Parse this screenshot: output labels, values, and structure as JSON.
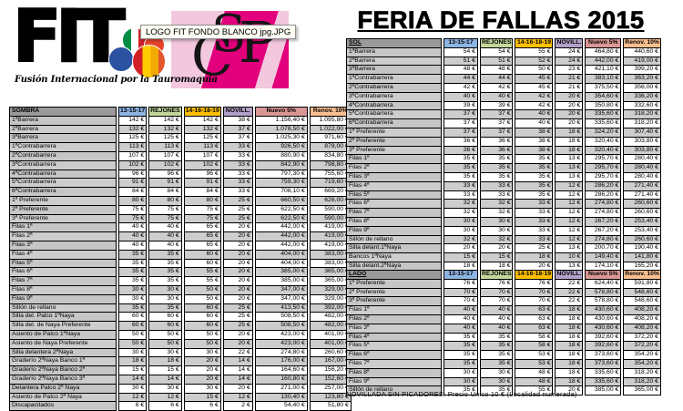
{
  "logo": {
    "wordmark": "FIT",
    "subtitle": "Fusión Internacional por la Tauromaquia",
    "tooltip": "LOGO FIT FONDO BLANCO jpg.JPG",
    "monogram_letters": {
      "s": "S",
      "c": "C",
      "p": "P"
    }
  },
  "title": "FERIA DE FALLAS 2015",
  "colors": {
    "magenta": "#e2007d",
    "pink_light": "#f3c8de",
    "header_gray": "#9a9a9a",
    "label_gray": "#c6c6c6",
    "row_alt": "#cdcdcd"
  },
  "columns": [
    "13-15-17",
    "REJONES",
    "14-16-18-19",
    "NOVILL.",
    "Nuevo 5%",
    "Renov. 10%"
  ],
  "column_colors": [
    "#8db4e2",
    "#c4d79b",
    "#ffc000",
    "#b1a0c7",
    "#d99694",
    "#fabf8f"
  ],
  "tables": {
    "sombra": {
      "label": "SOMBRA",
      "rows": [
        [
          "1ªBarrera",
          "142 €",
          "142 €",
          "142 €",
          "38 €",
          "1.156,40 €",
          "1.095,80 €"
        ],
        [
          "2ªBarrera",
          "132 €",
          "132 €",
          "132 €",
          "37 €",
          "1.078,50 €",
          "1.022,00 €"
        ],
        [
          "3ªBarrera",
          "125 €",
          "125 €",
          "125 €",
          "37 €",
          "1.025,30 €",
          "971,60 €"
        ],
        [
          "1ªContrabarrera",
          "113 €",
          "113 €",
          "113 €",
          "33 €",
          "926,50 €",
          "878,00 €"
        ],
        [
          "2ªContrabarrera",
          "107 €",
          "107 €",
          "107 €",
          "33 €",
          "880,90 €",
          "834,80 €"
        ],
        [
          "3ªContrabarrera",
          "102 €",
          "102 €",
          "102 €",
          "33 €",
          "842,90 €",
          "798,80 €"
        ],
        [
          "4ªContrabarrera",
          "96 €",
          "96 €",
          "96 €",
          "33 €",
          "797,30 €",
          "755,60 €"
        ],
        [
          "5ªContrabarrera",
          "91 €",
          "91 €",
          "91 €",
          "33 €",
          "759,30 €",
          "719,60 €"
        ],
        [
          "6ªContrabarrera",
          "84 €",
          "84 €",
          "84 €",
          "33 €",
          "706,10 €",
          "669,20 €"
        ],
        [
          "1ª Preferente",
          "80 €",
          "80 €",
          "80 €",
          "25 €",
          "660,50 €",
          "626,00 €"
        ],
        [
          "2ª Preferente",
          "75 €",
          "75 €",
          "75 €",
          "25 €",
          "622,50 €",
          "590,00 €"
        ],
        [
          "3ª Preferente",
          "75 €",
          "75 €",
          "75 €",
          "25 €",
          "622,50 €",
          "590,00 €"
        ],
        [
          "Filas 1ª",
          "40 €",
          "40 €",
          "65 €",
          "20 €",
          "442,00 €",
          "419,00 €"
        ],
        [
          "Filas 2ª",
          "40 €",
          "40 €",
          "65 €",
          "20 €",
          "442,00 €",
          "419,00 €"
        ],
        [
          "Filas 3ª",
          "40 €",
          "40 €",
          "65 €",
          "20 €",
          "442,00 €",
          "419,00 €"
        ],
        [
          "Filas 4ª",
          "35 €",
          "35 €",
          "60 €",
          "20 €",
          "404,00 €",
          "383,00 €"
        ],
        [
          "Filas 5ª",
          "35 €",
          "35 €",
          "60 €",
          "20 €",
          "404,00 €",
          "383,00 €"
        ],
        [
          "Filas 6ª",
          "35 €",
          "35 €",
          "55 €",
          "20 €",
          "385,00 €",
          "365,00 €"
        ],
        [
          "Filas 7ª",
          "35 €",
          "35 €",
          "55 €",
          "20 €",
          "385,00 €",
          "365,00 €"
        ],
        [
          "Filas 8ª",
          "30 €",
          "30 €",
          "50 €",
          "20 €",
          "347,00 €",
          "329,00 €"
        ],
        [
          "Filas 9ª",
          "30 €",
          "30 €",
          "50 €",
          "20 €",
          "347,00 €",
          "329,00 €"
        ],
        [
          "Sillón de rellano",
          "35 €",
          "35 €",
          "60 €",
          "25 €",
          "413,50 €",
          "392,00 €"
        ],
        [
          "Silla del. Palco 1ªNaya",
          "60 €",
          "60 €",
          "60 €",
          "25 €",
          "508,50 €",
          "482,00 €"
        ],
        [
          "Silla del. de Naya Preferente",
          "60 €",
          "60 €",
          "60 €",
          "25 €",
          "508,50 €",
          "482,00 €"
        ],
        [
          "Asiento de Palco 1ªNaya",
          "50 €",
          "50 €",
          "50 €",
          "20 €",
          "423,00 €",
          "401,00 €"
        ],
        [
          "Asiento de Naya Preferente",
          "50 €",
          "50 €",
          "50 €",
          "20 €",
          "423,00 €",
          "401,00 €"
        ],
        [
          "Silla delantera 2ªNaya",
          "30 €",
          "30 €",
          "30 €",
          "22 €",
          "274,80 €",
          "260,60 €"
        ],
        [
          "Graderío 2ªNaya Banco 1ª",
          "18 €",
          "18 €",
          "20 €",
          "14 €",
          "176,00 €",
          "167,00 €"
        ],
        [
          "Graderío 2ªNaya Banco 2ª",
          "15 €",
          "15 €",
          "20 €",
          "14 €",
          "164,60 €",
          "156,20 €"
        ],
        [
          "Graderío 2ªNaya Banco 3ª",
          "14 €",
          "14 €",
          "20 €",
          "14 €",
          "160,80 €",
          "152,60 €"
        ],
        [
          "Delantera Palco 2ª Naya",
          "30 €",
          "30 €",
          "30 €",
          "20 €",
          "271,00 €",
          "257,00 €"
        ],
        [
          "Asiento de Palco 2ª Naya",
          "12 €",
          "12 €",
          "15 €",
          "12 €",
          "130,40 €",
          "123,80 €"
        ],
        [
          "Discapacitados",
          "6 €",
          "6 €",
          "6 €",
          "2 €",
          "54,40 €",
          "51,80 €"
        ]
      ]
    },
    "sol": {
      "label": "SOL",
      "rows": [
        [
          "1ªBarrera",
          "54 €",
          "54 €",
          "55 €",
          "24 €",
          "464,80 €",
          "440,60 €"
        ],
        [
          "2ªBarrera",
          "51 €",
          "51 €",
          "52 €",
          "24 €",
          "442,00 €",
          "419,00 €"
        ],
        [
          "3ªBarrera",
          "48 €",
          "48 €",
          "50 €",
          "23 €",
          "421,10 €",
          "399,20 €"
        ],
        [
          "1ªContrabarrera",
          "44 €",
          "44 €",
          "45 €",
          "21 €",
          "383,10 €",
          "363,20 €"
        ],
        [
          "2ªContrabarrera",
          "42 €",
          "42 €",
          "45 €",
          "21 €",
          "375,50 €",
          "356,00 €"
        ],
        [
          "3ªContrabarrera",
          "40 €",
          "40 €",
          "42 €",
          "20 €",
          "354,60 €",
          "336,20 €"
        ],
        [
          "4ªContrabarrera",
          "39 €",
          "39 €",
          "42 €",
          "20 €",
          "350,80 €",
          "332,60 €"
        ],
        [
          "5ªContrabarrera",
          "37 €",
          "37 €",
          "40 €",
          "20 €",
          "335,60 €",
          "318,20 €"
        ],
        [
          "6ªContrabarrera",
          "37 €",
          "37 €",
          "40 €",
          "20 €",
          "335,60 €",
          "318,20 €"
        ],
        [
          "1ª Preferente",
          "37 €",
          "37 €",
          "38 €",
          "18 €",
          "324,20 €",
          "307,40 €"
        ],
        [
          "2ª Preferente",
          "36 €",
          "36 €",
          "38 €",
          "18 €",
          "320,40 €",
          "303,80 €"
        ],
        [
          "3ª Preferente",
          "36 €",
          "36 €",
          "38 €",
          "18 €",
          "320,40 €",
          "303,80 €"
        ],
        [
          "Filas 1ª",
          "35 €",
          "35 €",
          "35 €",
          "13 €",
          "295,70 €",
          "280,40 €"
        ],
        [
          "Filas 2ª",
          "35 €",
          "35 €",
          "35 €",
          "13 €",
          "295,70 €",
          "280,40 €"
        ],
        [
          "Filas 3ª",
          "35 €",
          "35 €",
          "35 €",
          "13 €",
          "295,70 €",
          "280,40 €"
        ],
        [
          "Filas 4ª",
          "33 €",
          "33 €",
          "35 €",
          "12 €",
          "286,20 €",
          "271,40 €"
        ],
        [
          "Filas 5ª",
          "33 €",
          "33 €",
          "35 €",
          "12 €",
          "286,20 €",
          "271,40 €"
        ],
        [
          "Filas 6ª",
          "32 €",
          "32 €",
          "33 €",
          "12 €",
          "274,80 €",
          "260,60 €"
        ],
        [
          "Filas 7ª",
          "32 €",
          "32 €",
          "33 €",
          "12 €",
          "274,80 €",
          "260,60 €"
        ],
        [
          "Filas 8ª",
          "30 €",
          "30 €",
          "33 €",
          "12 €",
          "267,20 €",
          "253,40 €"
        ],
        [
          "Filas 9ª",
          "30 €",
          "30 €",
          "33 €",
          "12 €",
          "267,20 €",
          "253,40 €"
        ],
        [
          "Sillón de rellano",
          "32 €",
          "32 €",
          "33 €",
          "12 €",
          "274,80 €",
          "260,60 €"
        ],
        [
          "Silla delant.1ªNaya",
          "20 €",
          "20 €",
          "25 €",
          "13 €",
          "200,70 €",
          "190,40 €"
        ],
        [
          "Bancos 1ªNaya",
          "15 €",
          "15 €",
          "18 €",
          "10 €",
          "149,40 €",
          "141,80 €"
        ],
        [
          "Silla delant.2ªNaya",
          "18 €",
          "18 €",
          "20 €",
          "13 €",
          "174,10 €",
          "165,20 €"
        ],
        [
          "Bancos 2ªNaya",
          "12 €",
          "12 €",
          "15 €",
          "8 €",
          "122,80 €",
          "116,60 €"
        ]
      ]
    },
    "lado": {
      "label": "LADO",
      "rows": [
        [
          "1ª Preferente",
          "76 €",
          "76 €",
          "76 €",
          "22 €",
          "624,40 €",
          "591,80 €"
        ],
        [
          "2ª Preferente",
          "70 €",
          "70 €",
          "70 €",
          "22 €",
          "578,80 €",
          "548,60 €"
        ],
        [
          "3ª Preferente",
          "70 €",
          "70 €",
          "70 €",
          "22 €",
          "578,80 €",
          "548,60 €"
        ],
        [
          "Filas 1ª",
          "40 €",
          "40 €",
          "63 €",
          "18 €",
          "430,60 €",
          "408,20 €"
        ],
        [
          "Filas 2ª",
          "40 €",
          "40 €",
          "63 €",
          "18 €",
          "430,60 €",
          "408,20 €"
        ],
        [
          "Filas 3ª",
          "40 €",
          "40 €",
          "63 €",
          "18 €",
          "430,60 €",
          "408,20 €"
        ],
        [
          "Filas 4ª",
          "35 €",
          "35 €",
          "58 €",
          "18 €",
          "392,60 €",
          "372,20 €"
        ],
        [
          "Filas 5ª",
          "35 €",
          "35 €",
          "58 €",
          "18 €",
          "392,60 €",
          "372,20 €"
        ],
        [
          "Filas 6ª",
          "35 €",
          "35 €",
          "53 €",
          "18 €",
          "373,60 €",
          "354,20 €"
        ],
        [
          "Filas 7ª",
          "35 €",
          "35 €",
          "53 €",
          "18 €",
          "373,60 €",
          "354,20 €"
        ],
        [
          "Filas 8ª",
          "30 €",
          "30 €",
          "48 €",
          "18 €",
          "335,60 €",
          "318,20 €"
        ],
        [
          "Filas 9ª",
          "30 €",
          "30 €",
          "48 €",
          "18 €",
          "335,60 €",
          "318,20 €"
        ],
        [
          "Sillón de rellano",
          "35 €",
          "35 €",
          "55 €",
          "20 €",
          "385,00 €",
          "365,00 €"
        ]
      ]
    }
  },
  "footnote": "NOVILLADA SIN PICADORES: Precio Único 10 € (Localidad numerada)"
}
